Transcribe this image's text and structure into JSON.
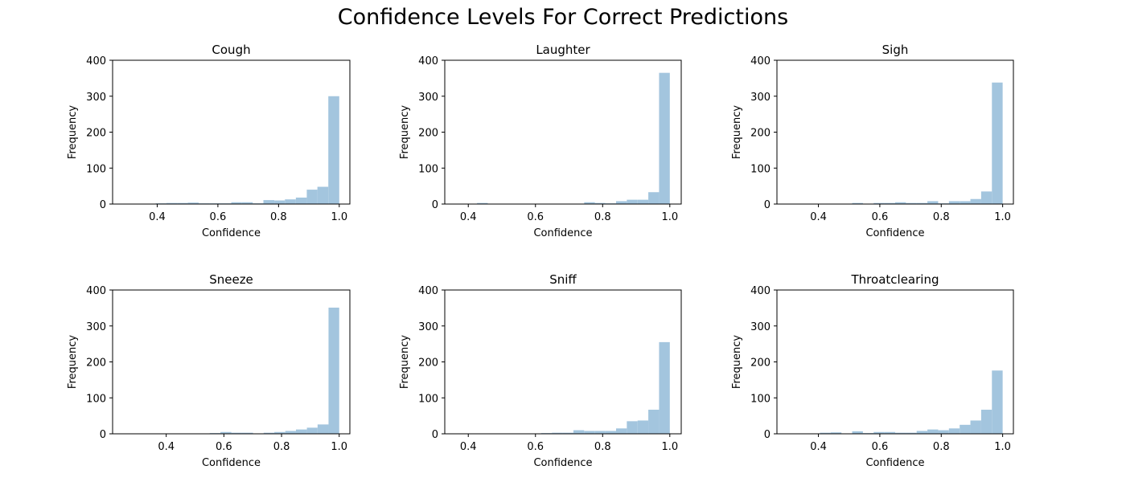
{
  "figure": {
    "title": "Confidence Levels For Correct Predictions"
  },
  "colors": {
    "bar": "#a3c5de",
    "axis": "#000000"
  },
  "chart_data": [
    {
      "type": "bar",
      "title": "Cough",
      "xlabel": "Confidence",
      "ylabel": "Frequency",
      "xlim": [
        0.253,
        1.035
      ],
      "ylim": [
        0,
        400
      ],
      "xticks": [
        0.4,
        0.6,
        0.8,
        1.0
      ],
      "xtick_labels": [
        "0.4",
        "0.6",
        "0.8",
        "1.0"
      ],
      "yticks": [
        0,
        100,
        200,
        300,
        400
      ],
      "ytick_labels": [
        "0",
        "100",
        "200",
        "300",
        "400"
      ],
      "bin_edges": [
        0.288,
        0.324,
        0.359,
        0.395,
        0.43,
        0.466,
        0.501,
        0.537,
        0.572,
        0.608,
        0.644,
        0.679,
        0.715,
        0.75,
        0.786,
        0.821,
        0.857,
        0.893,
        0.928,
        0.964,
        1.0
      ],
      "values": [
        1,
        1,
        0,
        2,
        3,
        3,
        4,
        2,
        2,
        2,
        5,
        5,
        2,
        11,
        10,
        13,
        18,
        40,
        48,
        300
      ]
    },
    {
      "type": "bar",
      "title": "Laughter",
      "xlabel": "Confidence",
      "ylabel": "Frequency",
      "xlim": [
        0.33,
        1.034
      ],
      "ylim": [
        0,
        400
      ],
      "xticks": [
        0.4,
        0.6,
        0.8,
        1.0
      ],
      "xtick_labels": [
        "0.4",
        "0.6",
        "0.8",
        "1.0"
      ],
      "yticks": [
        0,
        100,
        200,
        300,
        400
      ],
      "ytick_labels": [
        "0",
        "100",
        "200",
        "300",
        "400"
      ],
      "bin_edges": [
        0.362,
        0.394,
        0.426,
        0.458,
        0.49,
        0.522,
        0.554,
        0.585,
        0.617,
        0.649,
        0.681,
        0.713,
        0.745,
        0.777,
        0.808,
        0.84,
        0.872,
        0.904,
        0.936,
        0.968,
        1.0
      ],
      "values": [
        1,
        1,
        3,
        1,
        1,
        1,
        1,
        1,
        0,
        0,
        1,
        1,
        5,
        3,
        2,
        8,
        12,
        12,
        33,
        365
      ]
    },
    {
      "type": "bar",
      "title": "Sigh",
      "xlabel": "Confidence",
      "ylabel": "Frequency",
      "xlim": [
        0.265,
        1.035
      ],
      "ylim": [
        0,
        400
      ],
      "xticks": [
        0.4,
        0.6,
        0.8,
        1.0
      ],
      "xtick_labels": [
        "0.4",
        "0.6",
        "0.8",
        "1.0"
      ],
      "yticks": [
        0,
        100,
        200,
        300,
        400
      ],
      "ytick_labels": [
        "0",
        "100",
        "200",
        "300",
        "400"
      ],
      "bin_edges": [
        0.3,
        0.335,
        0.37,
        0.405,
        0.44,
        0.475,
        0.51,
        0.545,
        0.58,
        0.615,
        0.65,
        0.685,
        0.72,
        0.755,
        0.79,
        0.825,
        0.86,
        0.895,
        0.93,
        0.965,
        1.0
      ],
      "values": [
        1,
        0,
        1,
        1,
        1,
        1,
        3,
        1,
        3,
        3,
        5,
        3,
        3,
        8,
        2,
        8,
        8,
        14,
        35,
        338
      ]
    },
    {
      "type": "bar",
      "title": "Sneeze",
      "xlabel": "Confidence",
      "ylabel": "Frequency",
      "xlim": [
        0.214,
        1.037
      ],
      "ylim": [
        0,
        400
      ],
      "xticks": [
        0.4,
        0.6,
        0.8,
        1.0
      ],
      "xtick_labels": [
        "0.4",
        "0.6",
        "0.8",
        "1.0"
      ],
      "yticks": [
        0,
        100,
        200,
        300,
        400
      ],
      "ytick_labels": [
        "0",
        "100",
        "200",
        "300",
        "400"
      ],
      "bin_edges": [
        0.252,
        0.289,
        0.327,
        0.364,
        0.401,
        0.439,
        0.476,
        0.514,
        0.551,
        0.588,
        0.626,
        0.663,
        0.701,
        0.738,
        0.775,
        0.813,
        0.85,
        0.888,
        0.925,
        0.963,
        1.0
      ],
      "values": [
        0,
        0,
        0,
        1,
        1,
        0,
        0,
        1,
        2,
        5,
        3,
        3,
        0,
        3,
        5,
        8,
        12,
        17,
        26,
        351
      ]
    },
    {
      "type": "bar",
      "title": "Sniff",
      "xlabel": "Confidence",
      "ylabel": "Frequency",
      "xlim": [
        0.33,
        1.034
      ],
      "ylim": [
        0,
        400
      ],
      "xticks": [
        0.4,
        0.6,
        0.8,
        1.0
      ],
      "xtick_labels": [
        "0.4",
        "0.6",
        "0.8",
        "1.0"
      ],
      "yticks": [
        0,
        100,
        200,
        300,
        400
      ],
      "ytick_labels": [
        "0",
        "100",
        "200",
        "300",
        "400"
      ],
      "bin_edges": [
        0.362,
        0.394,
        0.426,
        0.458,
        0.49,
        0.522,
        0.554,
        0.585,
        0.617,
        0.649,
        0.681,
        0.713,
        0.745,
        0.777,
        0.808,
        0.84,
        0.872,
        0.904,
        0.936,
        0.968,
        1.0
      ],
      "values": [
        0,
        0,
        0,
        0,
        0,
        0,
        0,
        1,
        2,
        3,
        3,
        10,
        8,
        8,
        8,
        15,
        35,
        37,
        67,
        255
      ]
    },
    {
      "type": "bar",
      "title": "Throatclearing",
      "xlabel": "Confidence",
      "ylabel": "Frequency",
      "xlim": [
        0.265,
        1.035
      ],
      "ylim": [
        0,
        400
      ],
      "xticks": [
        0.4,
        0.6,
        0.8,
        1.0
      ],
      "xtick_labels": [
        "0.4",
        "0.6",
        "0.8",
        "1.0"
      ],
      "yticks": [
        0,
        100,
        200,
        300,
        400
      ],
      "ytick_labels": [
        "0",
        "100",
        "200",
        "300",
        "400"
      ],
      "bin_edges": [
        0.3,
        0.335,
        0.37,
        0.405,
        0.44,
        0.475,
        0.51,
        0.545,
        0.58,
        0.615,
        0.65,
        0.685,
        0.72,
        0.755,
        0.79,
        0.825,
        0.86,
        0.895,
        0.93,
        0.965,
        1.0
      ],
      "values": [
        1,
        0,
        0,
        3,
        4,
        1,
        7,
        2,
        5,
        5,
        3,
        3,
        8,
        12,
        10,
        15,
        25,
        37,
        67,
        176
      ]
    }
  ]
}
